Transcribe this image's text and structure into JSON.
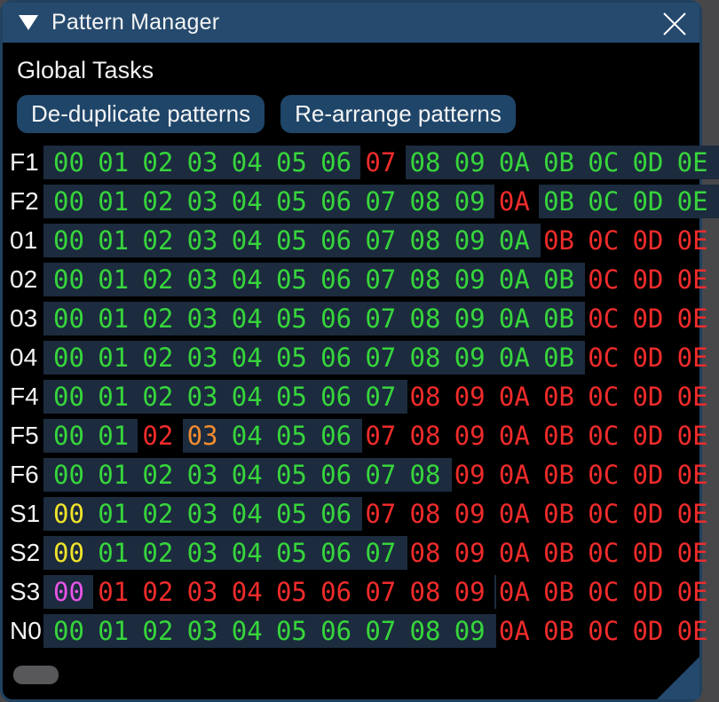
{
  "window": {
    "title": "Pattern Manager",
    "collapse_icon": "triangle-down-icon",
    "close_icon": "x-icon"
  },
  "global_tasks": {
    "label": "Global Tasks",
    "buttons": [
      "De-duplicate patterns",
      "Re-arrange patterns"
    ]
  },
  "colors": {
    "titlebar": "#254a6e",
    "button": "#1f4569",
    "row_strip": "#1c2b3e",
    "highlight": "#000000",
    "g": "#37d53c",
    "r": "#ef2b2b",
    "o": "#f08c2e",
    "y": "#efe32b",
    "m": "#e755e7",
    "label_text": "#f3f3f3"
  },
  "grid": {
    "rows": [
      {
        "label": "F1",
        "bg_cells": 15,
        "cells": [
          {
            "t": "00",
            "c": "g"
          },
          {
            "t": "01",
            "c": "g"
          },
          {
            "t": "02",
            "c": "g"
          },
          {
            "t": "03",
            "c": "g"
          },
          {
            "t": "04",
            "c": "g"
          },
          {
            "t": "05",
            "c": "g"
          },
          {
            "t": "06",
            "c": "g"
          },
          {
            "t": "07",
            "c": "r",
            "h": true
          },
          {
            "t": "08",
            "c": "g"
          },
          {
            "t": "09",
            "c": "g"
          },
          {
            "t": "0A",
            "c": "g"
          },
          {
            "t": "0B",
            "c": "g"
          },
          {
            "t": "0C",
            "c": "g"
          },
          {
            "t": "0D",
            "c": "g"
          },
          {
            "t": "0E",
            "c": "g"
          }
        ]
      },
      {
        "label": "F2",
        "bg_cells": 15,
        "cells": [
          {
            "t": "00",
            "c": "g"
          },
          {
            "t": "01",
            "c": "g"
          },
          {
            "t": "02",
            "c": "g"
          },
          {
            "t": "03",
            "c": "g"
          },
          {
            "t": "04",
            "c": "g"
          },
          {
            "t": "05",
            "c": "g"
          },
          {
            "t": "06",
            "c": "g"
          },
          {
            "t": "07",
            "c": "g"
          },
          {
            "t": "08",
            "c": "g"
          },
          {
            "t": "09",
            "c": "g"
          },
          {
            "t": "0A",
            "c": "r",
            "h": true
          },
          {
            "t": "0B",
            "c": "g"
          },
          {
            "t": "0C",
            "c": "g"
          },
          {
            "t": "0D",
            "c": "g"
          },
          {
            "t": "0E",
            "c": "g"
          }
        ]
      },
      {
        "label": "01",
        "bg_cells": 11,
        "cells": [
          {
            "t": "00",
            "c": "g"
          },
          {
            "t": "01",
            "c": "g"
          },
          {
            "t": "02",
            "c": "g"
          },
          {
            "t": "03",
            "c": "g"
          },
          {
            "t": "04",
            "c": "g"
          },
          {
            "t": "05",
            "c": "g"
          },
          {
            "t": "06",
            "c": "g"
          },
          {
            "t": "07",
            "c": "g"
          },
          {
            "t": "08",
            "c": "g"
          },
          {
            "t": "09",
            "c": "g"
          },
          {
            "t": "0A",
            "c": "g"
          },
          {
            "t": "0B",
            "c": "r"
          },
          {
            "t": "0C",
            "c": "r"
          },
          {
            "t": "0D",
            "c": "r"
          },
          {
            "t": "0E",
            "c": "r"
          }
        ]
      },
      {
        "label": "02",
        "bg_cells": 12,
        "cells": [
          {
            "t": "00",
            "c": "g"
          },
          {
            "t": "01",
            "c": "g"
          },
          {
            "t": "02",
            "c": "g"
          },
          {
            "t": "03",
            "c": "g"
          },
          {
            "t": "04",
            "c": "g"
          },
          {
            "t": "05",
            "c": "g"
          },
          {
            "t": "06",
            "c": "g"
          },
          {
            "t": "07",
            "c": "g"
          },
          {
            "t": "08",
            "c": "g"
          },
          {
            "t": "09",
            "c": "g"
          },
          {
            "t": "0A",
            "c": "g"
          },
          {
            "t": "0B",
            "c": "g"
          },
          {
            "t": "0C",
            "c": "r"
          },
          {
            "t": "0D",
            "c": "r"
          },
          {
            "t": "0E",
            "c": "r"
          }
        ]
      },
      {
        "label": "03",
        "bg_cells": 12,
        "cells": [
          {
            "t": "00",
            "c": "g"
          },
          {
            "t": "01",
            "c": "g"
          },
          {
            "t": "02",
            "c": "g"
          },
          {
            "t": "03",
            "c": "g"
          },
          {
            "t": "04",
            "c": "g"
          },
          {
            "t": "05",
            "c": "g"
          },
          {
            "t": "06",
            "c": "g"
          },
          {
            "t": "07",
            "c": "g"
          },
          {
            "t": "08",
            "c": "g"
          },
          {
            "t": "09",
            "c": "g"
          },
          {
            "t": "0A",
            "c": "g"
          },
          {
            "t": "0B",
            "c": "g"
          },
          {
            "t": "0C",
            "c": "r"
          },
          {
            "t": "0D",
            "c": "r"
          },
          {
            "t": "0E",
            "c": "r"
          }
        ]
      },
      {
        "label": "04",
        "bg_cells": 12,
        "cells": [
          {
            "t": "00",
            "c": "g"
          },
          {
            "t": "01",
            "c": "g"
          },
          {
            "t": "02",
            "c": "g"
          },
          {
            "t": "03",
            "c": "g"
          },
          {
            "t": "04",
            "c": "g"
          },
          {
            "t": "05",
            "c": "g"
          },
          {
            "t": "06",
            "c": "g"
          },
          {
            "t": "07",
            "c": "g"
          },
          {
            "t": "08",
            "c": "g"
          },
          {
            "t": "09",
            "c": "g"
          },
          {
            "t": "0A",
            "c": "g"
          },
          {
            "t": "0B",
            "c": "g"
          },
          {
            "t": "0C",
            "c": "r"
          },
          {
            "t": "0D",
            "c": "r"
          },
          {
            "t": "0E",
            "c": "r"
          }
        ]
      },
      {
        "label": "F4",
        "bg_cells": 8,
        "cells": [
          {
            "t": "00",
            "c": "g"
          },
          {
            "t": "01",
            "c": "g"
          },
          {
            "t": "02",
            "c": "g"
          },
          {
            "t": "03",
            "c": "g"
          },
          {
            "t": "04",
            "c": "g"
          },
          {
            "t": "05",
            "c": "g"
          },
          {
            "t": "06",
            "c": "g"
          },
          {
            "t": "07",
            "c": "g"
          },
          {
            "t": "08",
            "c": "r"
          },
          {
            "t": "09",
            "c": "r"
          },
          {
            "t": "0A",
            "c": "r"
          },
          {
            "t": "0B",
            "c": "r"
          },
          {
            "t": "0C",
            "c": "r"
          },
          {
            "t": "0D",
            "c": "r"
          },
          {
            "t": "0E",
            "c": "r"
          }
        ]
      },
      {
        "label": "F5",
        "bg_cells": 7,
        "cells": [
          {
            "t": "00",
            "c": "g"
          },
          {
            "t": "01",
            "c": "g"
          },
          {
            "t": "02",
            "c": "r",
            "h": true
          },
          {
            "t": "03",
            "c": "o"
          },
          {
            "t": "04",
            "c": "g"
          },
          {
            "t": "05",
            "c": "g"
          },
          {
            "t": "06",
            "c": "g"
          },
          {
            "t": "07",
            "c": "r"
          },
          {
            "t": "08",
            "c": "r"
          },
          {
            "t": "09",
            "c": "r"
          },
          {
            "t": "0A",
            "c": "r"
          },
          {
            "t": "0B",
            "c": "r"
          },
          {
            "t": "0C",
            "c": "r"
          },
          {
            "t": "0D",
            "c": "r"
          },
          {
            "t": "0E",
            "c": "r"
          }
        ]
      },
      {
        "label": "F6",
        "bg_cells": 9,
        "cells": [
          {
            "t": "00",
            "c": "g"
          },
          {
            "t": "01",
            "c": "g"
          },
          {
            "t": "02",
            "c": "g"
          },
          {
            "t": "03",
            "c": "g"
          },
          {
            "t": "04",
            "c": "g"
          },
          {
            "t": "05",
            "c": "g"
          },
          {
            "t": "06",
            "c": "g"
          },
          {
            "t": "07",
            "c": "g"
          },
          {
            "t": "08",
            "c": "g"
          },
          {
            "t": "09",
            "c": "r"
          },
          {
            "t": "0A",
            "c": "r"
          },
          {
            "t": "0B",
            "c": "r"
          },
          {
            "t": "0C",
            "c": "r"
          },
          {
            "t": "0D",
            "c": "r"
          },
          {
            "t": "0E",
            "c": "r"
          }
        ]
      },
      {
        "label": "S1",
        "bg_cells": 7,
        "cells": [
          {
            "t": "00",
            "c": "y"
          },
          {
            "t": "01",
            "c": "g"
          },
          {
            "t": "02",
            "c": "g"
          },
          {
            "t": "03",
            "c": "g"
          },
          {
            "t": "04",
            "c": "g"
          },
          {
            "t": "05",
            "c": "g"
          },
          {
            "t": "06",
            "c": "g"
          },
          {
            "t": "07",
            "c": "r"
          },
          {
            "t": "08",
            "c": "r"
          },
          {
            "t": "09",
            "c": "r"
          },
          {
            "t": "0A",
            "c": "r"
          },
          {
            "t": "0B",
            "c": "r"
          },
          {
            "t": "0C",
            "c": "r"
          },
          {
            "t": "0D",
            "c": "r"
          },
          {
            "t": "0E",
            "c": "r"
          }
        ]
      },
      {
        "label": "S2",
        "bg_cells": 8,
        "cells": [
          {
            "t": "00",
            "c": "y"
          },
          {
            "t": "01",
            "c": "g"
          },
          {
            "t": "02",
            "c": "g"
          },
          {
            "t": "03",
            "c": "g"
          },
          {
            "t": "04",
            "c": "g"
          },
          {
            "t": "05",
            "c": "g"
          },
          {
            "t": "06",
            "c": "g"
          },
          {
            "t": "07",
            "c": "g"
          },
          {
            "t": "08",
            "c": "r"
          },
          {
            "t": "09",
            "c": "r"
          },
          {
            "t": "0A",
            "c": "r"
          },
          {
            "t": "0B",
            "c": "r"
          },
          {
            "t": "0C",
            "c": "r"
          },
          {
            "t": "0D",
            "c": "r"
          },
          {
            "t": "0E",
            "c": "r"
          }
        ]
      },
      {
        "label": "S3",
        "bg_cells": 10,
        "cells": [
          {
            "t": "00",
            "c": "m"
          },
          {
            "t": "01",
            "c": "r",
            "h": true
          },
          {
            "t": "02",
            "c": "r",
            "h": true
          },
          {
            "t": "03",
            "c": "r",
            "h": true
          },
          {
            "t": "04",
            "c": "r",
            "h": true
          },
          {
            "t": "05",
            "c": "r",
            "h": true
          },
          {
            "t": "06",
            "c": "r",
            "h": true
          },
          {
            "t": "07",
            "c": "r",
            "h": true
          },
          {
            "t": "08",
            "c": "r",
            "h": true
          },
          {
            "t": "09",
            "c": "r",
            "h": true
          },
          {
            "t": "0A",
            "c": "r"
          },
          {
            "t": "0B",
            "c": "r"
          },
          {
            "t": "0C",
            "c": "r"
          },
          {
            "t": "0D",
            "c": "r"
          },
          {
            "t": "0E",
            "c": "r"
          }
        ]
      },
      {
        "label": "N0",
        "bg_cells": 10,
        "cells": [
          {
            "t": "00",
            "c": "g"
          },
          {
            "t": "01",
            "c": "g"
          },
          {
            "t": "02",
            "c": "g"
          },
          {
            "t": "03",
            "c": "g"
          },
          {
            "t": "04",
            "c": "g"
          },
          {
            "t": "05",
            "c": "g"
          },
          {
            "t": "06",
            "c": "g"
          },
          {
            "t": "07",
            "c": "g"
          },
          {
            "t": "08",
            "c": "g"
          },
          {
            "t": "09",
            "c": "g"
          },
          {
            "t": "0A",
            "c": "r"
          },
          {
            "t": "0B",
            "c": "r"
          },
          {
            "t": "0C",
            "c": "r"
          },
          {
            "t": "0D",
            "c": "r"
          },
          {
            "t": "0E",
            "c": "r"
          }
        ]
      }
    ]
  }
}
